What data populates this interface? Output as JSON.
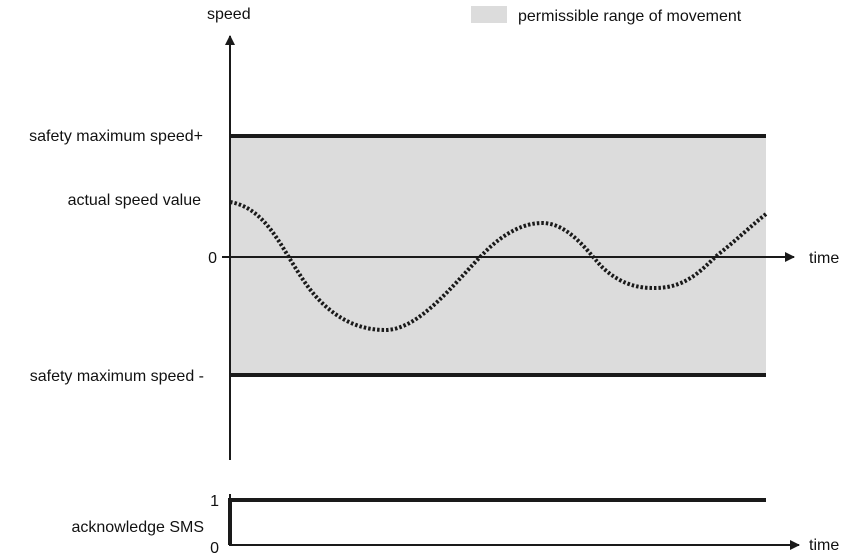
{
  "legend": {
    "label": "permissible range of movement",
    "swatch_color": "#dcdcdc"
  },
  "speed_chart": {
    "y_axis_label": "speed",
    "x_axis_label": "time",
    "upper_limit_label": "safety maximum speed+",
    "lower_limit_label": "safety maximum speed -",
    "actual_value_label": "actual speed value",
    "zero_label": "0",
    "band_color": "#dcdcdc",
    "line_color": "#1a1a1a"
  },
  "ack_chart": {
    "signal_label": "acknowledge SMS",
    "high_label": "1",
    "low_label": "0",
    "x_axis_label": "time"
  }
}
